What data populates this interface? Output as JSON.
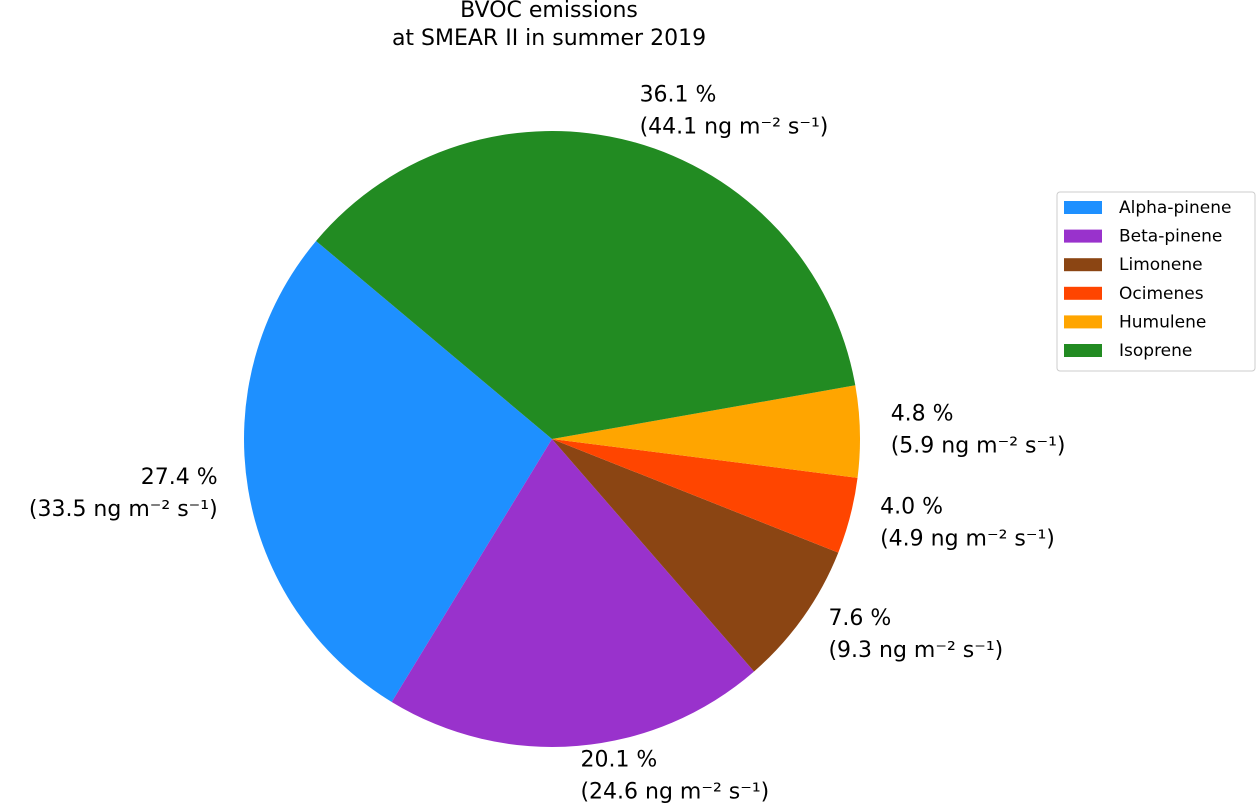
{
  "chart_data": {
    "type": "pie",
    "title": "BVOC emissions\nat SMEAR II in summer 2019",
    "categories": [
      "Alpha-pinene",
      "Beta-pinene",
      "Limonene",
      "Ocimenes",
      "Humulene",
      "Isoprene"
    ],
    "values": [
      27.4,
      20.1,
      7.6,
      4.0,
      4.8,
      36.1
    ],
    "value_labels": [
      "27.4 %",
      "20.1 %",
      "7.6 %",
      "4.0 %",
      "4.8 %",
      "36.1 %"
    ],
    "emissions": [
      33.5,
      24.6,
      9.3,
      4.9,
      5.9,
      44.1
    ],
    "emission_labels": [
      "(33.5 ng m⁻² s⁻¹)",
      "(24.6 ng m⁻² s⁻¹)",
      "(9.3 ng m⁻² s⁻¹)",
      "(4.9 ng m⁻² s⁻¹)",
      "(5.9 ng m⁻² s⁻¹)",
      "(44.1 ng m⁻² s⁻¹)"
    ],
    "colors": [
      "#1e90ff",
      "#9932cc",
      "#8b4513",
      "#ff4500",
      "#ffa500",
      "#228b22"
    ],
    "start_angle": 140,
    "legend": "right"
  }
}
